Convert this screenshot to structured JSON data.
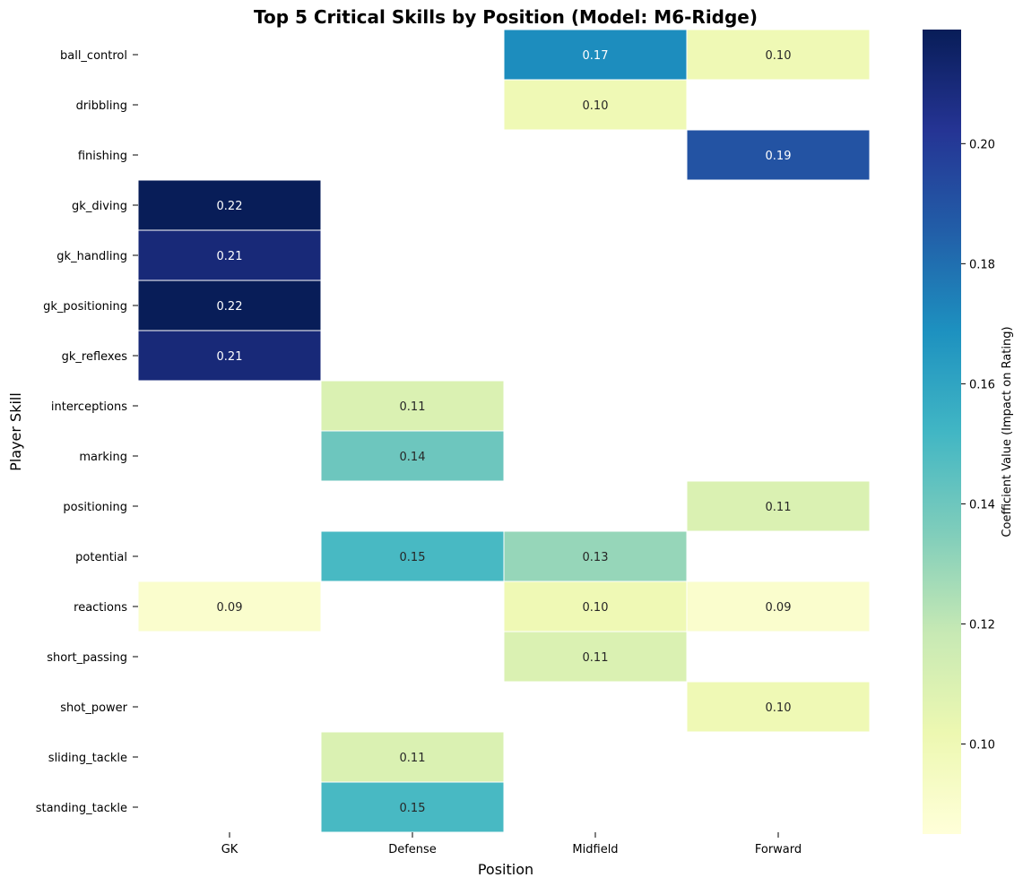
{
  "chart_data": {
    "type": "heatmap",
    "title": "Top 5 Critical Skills by Position (Model: M6-Ridge)",
    "xlabel": "Position",
    "ylabel": "Player Skill",
    "colorbar_label": "Coefficient Value (Impact on Rating)",
    "x_categories": [
      "GK",
      "Defense",
      "Midfield",
      "Forward"
    ],
    "y_categories": [
      "ball_control",
      "dribbling",
      "finishing",
      "gk_diving",
      "gk_handling",
      "gk_positioning",
      "gk_reflexes",
      "interceptions",
      "marking",
      "positioning",
      "potential",
      "reactions",
      "short_passing",
      "shot_power",
      "sliding_tackle",
      "standing_tackle"
    ],
    "values": [
      [
        null,
        null,
        0.17,
        0.1
      ],
      [
        null,
        null,
        0.1,
        null
      ],
      [
        null,
        null,
        null,
        0.19
      ],
      [
        0.22,
        null,
        null,
        null
      ],
      [
        0.21,
        null,
        null,
        null
      ],
      [
        0.22,
        null,
        null,
        null
      ],
      [
        0.21,
        null,
        null,
        null
      ],
      [
        null,
        0.11,
        null,
        null
      ],
      [
        null,
        0.14,
        null,
        null
      ],
      [
        null,
        null,
        null,
        0.11
      ],
      [
        null,
        0.15,
        0.13,
        null
      ],
      [
        0.09,
        null,
        0.1,
        0.09
      ],
      [
        null,
        null,
        0.11,
        null
      ],
      [
        null,
        null,
        null,
        0.1
      ],
      [
        null,
        0.11,
        null,
        null
      ],
      [
        null,
        0.15,
        null,
        null
      ]
    ],
    "value_format": "0.00",
    "colormap": "YlGnBu",
    "colormap_stops": [
      "#ffffd9",
      "#edf8b1",
      "#c7e9b4",
      "#7fcdbb",
      "#41b6c4",
      "#1d91c0",
      "#225ea8",
      "#253494",
      "#081d58"
    ],
    "color_range": [
      0.085,
      0.219
    ],
    "colorbar_ticks": [
      0.1,
      0.12,
      0.14,
      0.16,
      0.18,
      0.2
    ],
    "grid": false
  }
}
